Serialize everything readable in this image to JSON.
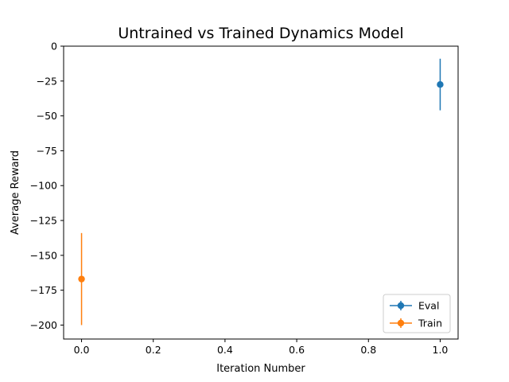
{
  "chart_data": {
    "type": "scatter",
    "title": "Untrained vs Trained Dynamics Model",
    "xlabel": "Iteration Number",
    "ylabel": "Average Reward",
    "xlim": [
      -0.05,
      1.05
    ],
    "ylim": [
      -210,
      0
    ],
    "xticks": [
      0.0,
      0.2,
      0.4,
      0.6,
      0.8,
      1.0
    ],
    "xtick_labels": [
      "0.0",
      "0.2",
      "0.4",
      "0.6",
      "0.8",
      "1.0"
    ],
    "yticks": [
      0,
      -25,
      -50,
      -75,
      -100,
      -125,
      -150,
      -175,
      -200
    ],
    "ytick_labels": [
      "0",
      "−25",
      "−50",
      "−75",
      "−100",
      "−125",
      "−150",
      "−175",
      "−200"
    ],
    "grid": false,
    "legend_position": "bottom-right",
    "series": [
      {
        "name": "Eval",
        "color": "#1f77b4",
        "x": [
          1.0
        ],
        "y": [
          -27.5
        ],
        "yerr": [
          18.5
        ]
      },
      {
        "name": "Train",
        "color": "#ff7f0e",
        "x": [
          0.0
        ],
        "y": [
          -167
        ],
        "yerr": [
          33
        ]
      }
    ]
  }
}
